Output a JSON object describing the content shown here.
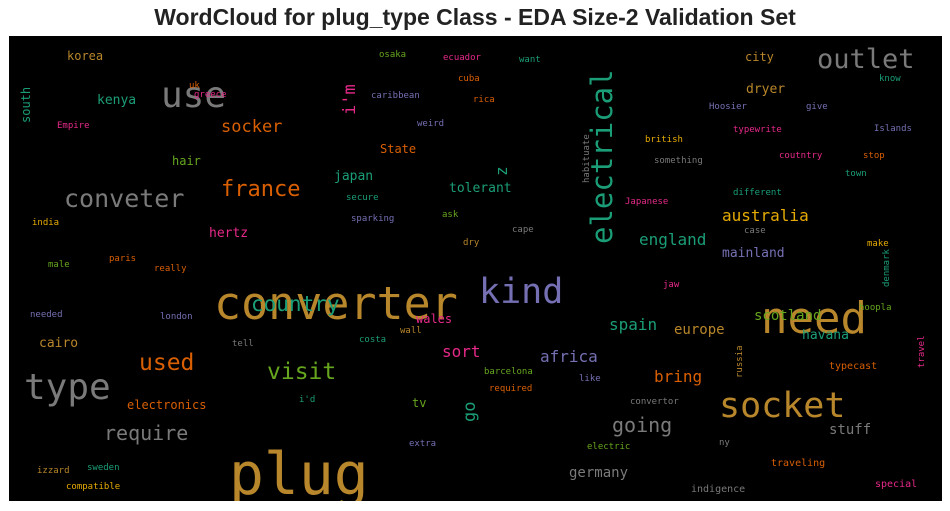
{
  "title": "WordCloud for plug_type Class - EDA Size-2 Validation Set",
  "chart_data": {
    "type": "wordcloud",
    "background": "#000000",
    "palette": {
      "gold": "#b8862b",
      "gray": "#7a7a7a",
      "purple": "#7570b3",
      "green": "#1b9e77",
      "pink": "#e7298a",
      "orange": "#d95f02",
      "yellowgreen": "#66a61e",
      "yellow": "#e6ab02"
    },
    "words": [
      {
        "text": "plug",
        "weight": 1.0,
        "color": "gold",
        "orientation": "horizontal"
      },
      {
        "text": "converter",
        "weight": 0.78,
        "color": "gold",
        "orientation": "horizontal"
      },
      {
        "text": "need",
        "weight": 0.75,
        "color": "gold",
        "orientation": "horizontal"
      },
      {
        "text": "type",
        "weight": 0.62,
        "color": "gray",
        "orientation": "horizontal"
      },
      {
        "text": "use",
        "weight": 0.62,
        "color": "gray",
        "orientation": "horizontal"
      },
      {
        "text": "socket",
        "weight": 0.6,
        "color": "gold",
        "orientation": "horizontal"
      },
      {
        "text": "kind",
        "weight": 0.6,
        "color": "purple",
        "orientation": "horizontal"
      },
      {
        "text": "electrical",
        "weight": 0.5,
        "color": "green",
        "orientation": "vertical"
      },
      {
        "text": "outlet",
        "weight": 0.47,
        "color": "gray",
        "orientation": "horizontal"
      },
      {
        "text": "conveter",
        "weight": 0.43,
        "color": "gray",
        "orientation": "horizontal"
      },
      {
        "text": "visit",
        "weight": 0.4,
        "color": "yellowgreen",
        "orientation": "horizontal"
      },
      {
        "text": "used",
        "weight": 0.4,
        "color": "orange",
        "orientation": "horizontal"
      },
      {
        "text": "france",
        "weight": 0.38,
        "color": "orange",
        "orientation": "horizontal"
      },
      {
        "text": "country",
        "weight": 0.36,
        "color": "green",
        "orientation": "horizontal"
      },
      {
        "text": "require",
        "weight": 0.34,
        "color": "gray",
        "orientation": "horizontal"
      },
      {
        "text": "going",
        "weight": 0.34,
        "color": "gray",
        "orientation": "horizontal"
      },
      {
        "text": "i'm",
        "weight": 0.3,
        "color": "pink",
        "orientation": "vertical"
      },
      {
        "text": "go",
        "weight": 0.3,
        "color": "green",
        "orientation": "vertical"
      },
      {
        "text": "socker",
        "weight": 0.3,
        "color": "orange",
        "orientation": "horizontal"
      },
      {
        "text": "africa",
        "weight": 0.28,
        "color": "purple",
        "orientation": "horizontal"
      },
      {
        "text": "australia",
        "weight": 0.28,
        "color": "yellow",
        "orientation": "horizontal"
      },
      {
        "text": "england",
        "weight": 0.28,
        "color": "green",
        "orientation": "horizontal"
      },
      {
        "text": "spain",
        "weight": 0.28,
        "color": "green",
        "orientation": "horizontal"
      },
      {
        "text": "bring",
        "weight": 0.28,
        "color": "orange",
        "orientation": "horizontal"
      },
      {
        "text": "sort",
        "weight": 0.27,
        "color": "pink",
        "orientation": "horizontal"
      },
      {
        "text": "z",
        "weight": 0.27,
        "color": "green",
        "orientation": "vertical"
      },
      {
        "text": "germany",
        "weight": 0.24,
        "color": "gray",
        "orientation": "horizontal"
      },
      {
        "text": "stuff",
        "weight": 0.24,
        "color": "gray",
        "orientation": "horizontal"
      },
      {
        "text": "scotland",
        "weight": 0.24,
        "color": "yellowgreen",
        "orientation": "horizontal"
      },
      {
        "text": "europe",
        "weight": 0.24,
        "color": "gold",
        "orientation": "horizontal"
      },
      {
        "text": "japan",
        "weight": 0.23,
        "color": "green",
        "orientation": "horizontal"
      },
      {
        "text": "tolerant",
        "weight": 0.23,
        "color": "green",
        "orientation": "horizontal"
      },
      {
        "text": "dryer",
        "weight": 0.23,
        "color": "gold",
        "orientation": "horizontal"
      },
      {
        "text": "kenya",
        "weight": 0.22,
        "color": "green",
        "orientation": "horizontal"
      },
      {
        "text": "cairo",
        "weight": 0.22,
        "color": "gold",
        "orientation": "horizontal"
      },
      {
        "text": "havana",
        "weight": 0.22,
        "color": "green",
        "orientation": "horizontal"
      },
      {
        "text": "mainland",
        "weight": 0.22,
        "color": "purple",
        "orientation": "horizontal"
      },
      {
        "text": "hertz",
        "weight": 0.22,
        "color": "pink",
        "orientation": "horizontal"
      },
      {
        "text": "electronics",
        "weight": 0.21,
        "color": "orange",
        "orientation": "horizontal"
      },
      {
        "text": "State",
        "weight": 0.21,
        "color": "orange",
        "orientation": "horizontal"
      },
      {
        "text": "wales",
        "weight": 0.21,
        "color": "pink",
        "orientation": "horizontal"
      },
      {
        "text": "hair",
        "weight": 0.21,
        "color": "yellowgreen",
        "orientation": "horizontal"
      },
      {
        "text": "city",
        "weight": 0.21,
        "color": "gold",
        "orientation": "horizontal"
      },
      {
        "text": "korea",
        "weight": 0.2,
        "color": "gold",
        "orientation": "horizontal"
      },
      {
        "text": "tv",
        "weight": 0.2,
        "color": "yellowgreen",
        "orientation": "horizontal"
      },
      {
        "text": "south",
        "weight": 0.2,
        "color": "green",
        "orientation": "vertical"
      },
      {
        "text": "typecast",
        "weight": 0.17,
        "color": "orange",
        "orientation": "horizontal"
      },
      {
        "text": "traveling",
        "weight": 0.17,
        "color": "orange",
        "orientation": "horizontal"
      },
      {
        "text": "special",
        "weight": 0.17,
        "color": "pink",
        "orientation": "horizontal"
      },
      {
        "text": "indigence",
        "weight": 0.17,
        "color": "gray",
        "orientation": "horizontal"
      },
      {
        "text": "sweden",
        "weight": 0.16,
        "color": "green",
        "orientation": "horizontal"
      },
      {
        "text": "compatible",
        "weight": 0.16,
        "color": "yellow",
        "orientation": "horizontal"
      },
      {
        "text": "izzard",
        "weight": 0.16,
        "color": "gold",
        "orientation": "horizontal"
      },
      {
        "text": "extra",
        "weight": 0.16,
        "color": "purple",
        "orientation": "horizontal"
      },
      {
        "text": "electric",
        "weight": 0.16,
        "color": "yellowgreen",
        "orientation": "horizontal"
      },
      {
        "text": "ny",
        "weight": 0.16,
        "color": "gray",
        "orientation": "horizontal"
      },
      {
        "text": "convertor",
        "weight": 0.16,
        "color": "gray",
        "orientation": "horizontal"
      },
      {
        "text": "barcelona",
        "weight": 0.16,
        "color": "yellowgreen",
        "orientation": "horizontal"
      },
      {
        "text": "required",
        "weight": 0.16,
        "color": "orange",
        "orientation": "horizontal"
      },
      {
        "text": "like",
        "weight": 0.16,
        "color": "purple",
        "orientation": "horizontal"
      },
      {
        "text": "i'd",
        "weight": 0.16,
        "color": "green",
        "orientation": "horizontal"
      },
      {
        "text": "tell",
        "weight": 0.16,
        "color": "gray",
        "orientation": "horizontal"
      },
      {
        "text": "costa",
        "weight": 0.16,
        "color": "green",
        "orientation": "horizontal"
      },
      {
        "text": "london",
        "weight": 0.16,
        "color": "purple",
        "orientation": "horizontal"
      },
      {
        "text": "needed",
        "weight": 0.16,
        "color": "purple",
        "orientation": "horizontal"
      },
      {
        "text": "wall",
        "weight": 0.16,
        "color": "gold",
        "orientation": "horizontal"
      },
      {
        "text": "russia",
        "weight": 0.16,
        "color": "gold",
        "orientation": "vertical"
      },
      {
        "text": "hoopla",
        "weight": 0.16,
        "color": "yellowgreen",
        "orientation": "horizontal"
      },
      {
        "text": "travel",
        "weight": 0.16,
        "color": "pink",
        "orientation": "vertical"
      },
      {
        "text": "denmark",
        "weight": 0.16,
        "color": "green",
        "orientation": "vertical"
      },
      {
        "text": "make",
        "weight": 0.16,
        "color": "yellow",
        "orientation": "horizontal"
      },
      {
        "text": "jaw",
        "weight": 0.16,
        "color": "pink",
        "orientation": "horizontal"
      },
      {
        "text": "male",
        "weight": 0.16,
        "color": "yellowgreen",
        "orientation": "horizontal"
      },
      {
        "text": "paris",
        "weight": 0.16,
        "color": "orange",
        "orientation": "horizontal"
      },
      {
        "text": "really",
        "weight": 0.16,
        "color": "orange",
        "orientation": "horizontal"
      },
      {
        "text": "dry",
        "weight": 0.16,
        "color": "gold",
        "orientation": "horizontal"
      },
      {
        "text": "india",
        "weight": 0.16,
        "color": "yellow",
        "orientation": "horizontal"
      },
      {
        "text": "sparking",
        "weight": 0.16,
        "color": "purple",
        "orientation": "horizontal"
      },
      {
        "text": "ask",
        "weight": 0.16,
        "color": "yellowgreen",
        "orientation": "horizontal"
      },
      {
        "text": "cape",
        "weight": 0.16,
        "color": "gray",
        "orientation": "horizontal"
      },
      {
        "text": "secure",
        "weight": 0.16,
        "color": "green",
        "orientation": "horizontal"
      },
      {
        "text": "Japanese",
        "weight": 0.16,
        "color": "pink",
        "orientation": "horizontal"
      },
      {
        "text": "different",
        "weight": 0.16,
        "color": "green",
        "orientation": "horizontal"
      },
      {
        "text": "case",
        "weight": 0.16,
        "color": "gray",
        "orientation": "horizontal"
      },
      {
        "text": "town",
        "weight": 0.16,
        "color": "green",
        "orientation": "horizontal"
      },
      {
        "text": "something",
        "weight": 0.16,
        "color": "gray",
        "orientation": "horizontal"
      },
      {
        "text": "habituate",
        "weight": 0.16,
        "color": "gray",
        "orientation": "vertical"
      },
      {
        "text": "british",
        "weight": 0.16,
        "color": "yellow",
        "orientation": "horizontal"
      },
      {
        "text": "coutntry",
        "weight": 0.16,
        "color": "pink",
        "orientation": "horizontal"
      },
      {
        "text": "stop",
        "weight": 0.16,
        "color": "orange",
        "orientation": "horizontal"
      },
      {
        "text": "typewrite",
        "weight": 0.16,
        "color": "pink",
        "orientation": "horizontal"
      },
      {
        "text": "Islands",
        "weight": 0.16,
        "color": "purple",
        "orientation": "horizontal"
      },
      {
        "text": "Hoosier",
        "weight": 0.16,
        "color": "purple",
        "orientation": "horizontal"
      },
      {
        "text": "give",
        "weight": 0.16,
        "color": "purple",
        "orientation": "horizontal"
      },
      {
        "text": "know",
        "weight": 0.16,
        "color": "green",
        "orientation": "horizontal"
      },
      {
        "text": "weird",
        "weight": 0.16,
        "color": "purple",
        "orientation": "horizontal"
      },
      {
        "text": "caribbean",
        "weight": 0.16,
        "color": "purple",
        "orientation": "horizontal"
      },
      {
        "text": "rica",
        "weight": 0.16,
        "color": "orange",
        "orientation": "horizontal"
      },
      {
        "text": "cuba",
        "weight": 0.16,
        "color": "orange",
        "orientation": "horizontal"
      },
      {
        "text": "ecuador",
        "weight": 0.16,
        "color": "pink",
        "orientation": "horizontal"
      },
      {
        "text": "want",
        "weight": 0.16,
        "color": "green",
        "orientation": "horizontal"
      },
      {
        "text": "osaka",
        "weight": 0.16,
        "color": "yellowgreen",
        "orientation": "horizontal"
      },
      {
        "text": "uk",
        "weight": 0.16,
        "color": "orange",
        "orientation": "horizontal"
      },
      {
        "text": "greece",
        "weight": 0.16,
        "color": "pink",
        "orientation": "horizontal"
      },
      {
        "text": "Empire",
        "weight": 0.16,
        "color": "pink",
        "orientation": "horizontal"
      }
    ]
  }
}
